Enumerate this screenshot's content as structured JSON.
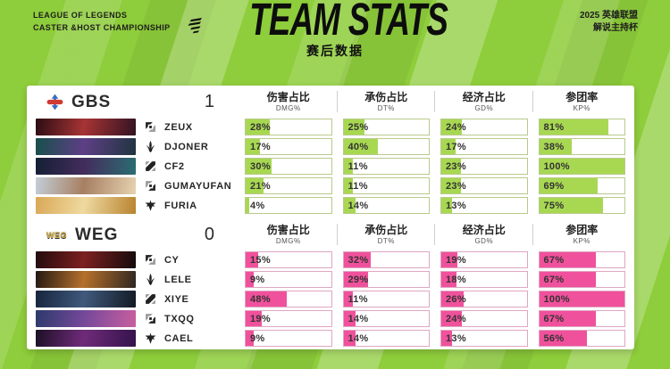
{
  "header": {
    "event_left_line1": "LEAGUE OF LEGENDS",
    "event_left_line2": "CASTER &HOST CHAMPIONSHIP",
    "event_right_line1": "2025 英雄联盟",
    "event_right_line2": "解说主持杯",
    "title": "TEAM STATS",
    "subtitle": "赛后数据"
  },
  "columns": [
    {
      "zh": "伤害占比",
      "en": "DMG%"
    },
    {
      "zh": "承伤占比",
      "en": "DT%"
    },
    {
      "zh": "经济占比",
      "en": "GD%"
    },
    {
      "zh": "参团率",
      "en": "KP%"
    }
  ],
  "colors": {
    "bg-base": "#8ecd3b",
    "panel": "#ffffff",
    "gbs-fill": "#a8d852",
    "gbs-border": "#b9c98c",
    "weg-fill": "#f0519c",
    "weg-border": "#e0a6c2",
    "ink": "#1d1d1d"
  },
  "teams": [
    {
      "name": "GBS",
      "score": "1",
      "players": [
        {
          "name": "ZEUX",
          "role": "top",
          "stats": [
            "28%",
            "25%",
            "24%",
            "81%"
          ],
          "art": [
            "#2b0d13",
            "#a63434",
            "#321322"
          ]
        },
        {
          "name": "DJONER",
          "role": "jungle",
          "stats": [
            "17%",
            "40%",
            "17%",
            "38%"
          ],
          "art": [
            "#17504b",
            "#5d3f85",
            "#203440"
          ]
        },
        {
          "name": "CF2",
          "role": "mid",
          "stats": [
            "30%",
            "11%",
            "23%",
            "100%"
          ],
          "art": [
            "#131f33",
            "#432c5c",
            "#2b6e72"
          ]
        },
        {
          "name": "GUMAYUFAN",
          "role": "bot",
          "stats": [
            "21%",
            "11%",
            "23%",
            "69%"
          ],
          "art": [
            "#c3ced8",
            "#a77f62",
            "#e6d3b0"
          ]
        },
        {
          "name": "FURIA",
          "role": "support",
          "stats": [
            "4%",
            "14%",
            "13%",
            "75%"
          ],
          "art": [
            "#d9a855",
            "#efd9a0",
            "#b8832f"
          ]
        }
      ]
    },
    {
      "name": "WEG",
      "score": "0",
      "logo_text": "WEG",
      "players": [
        {
          "name": "CY",
          "role": "top",
          "stats": [
            "15%",
            "32%",
            "19%",
            "67%"
          ],
          "art": [
            "#230b0d",
            "#7c2020",
            "#140a0c"
          ]
        },
        {
          "name": "LELE",
          "role": "jungle",
          "stats": [
            "9%",
            "29%",
            "18%",
            "67%"
          ],
          "art": [
            "#231812",
            "#b5702c",
            "#2e2620"
          ]
        },
        {
          "name": "XIYE",
          "role": "mid",
          "stats": [
            "48%",
            "11%",
            "26%",
            "100%"
          ],
          "art": [
            "#16253d",
            "#40597c",
            "#121a24"
          ]
        },
        {
          "name": "TXQQ",
          "role": "bot",
          "stats": [
            "19%",
            "14%",
            "24%",
            "67%"
          ],
          "art": [
            "#2b3a6b",
            "#75489a",
            "#c95f9f"
          ]
        },
        {
          "name": "CAEL",
          "role": "support",
          "stats": [
            "9%",
            "14%",
            "13%",
            "56%"
          ],
          "art": [
            "#1c1026",
            "#6f2b79",
            "#33124b"
          ]
        }
      ]
    }
  ]
}
